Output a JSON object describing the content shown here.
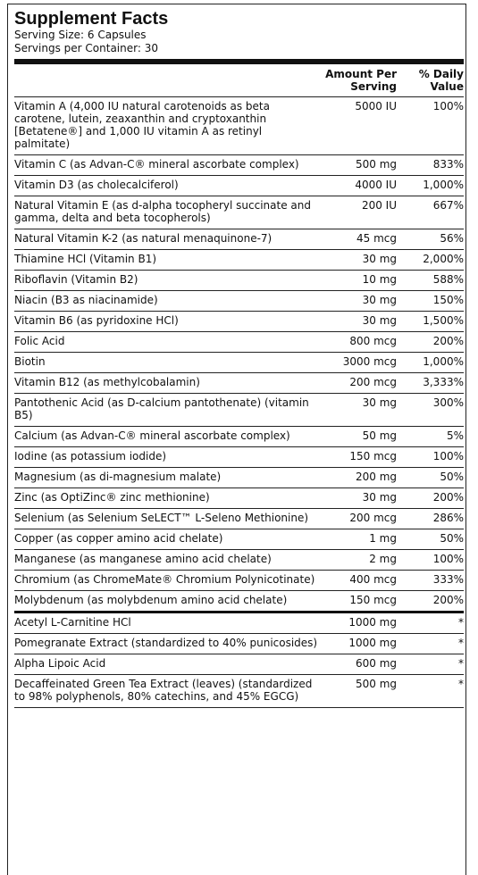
{
  "title": "Supplement Facts",
  "serving_size": "Serving Size: 6 Capsules",
  "servings_per_container": "Servings per Container: 30",
  "headers": {
    "amount_line1": "Amount Per",
    "amount_line2": "Serving",
    "dv_line1": "% Daily",
    "dv_line2": "Value"
  },
  "rows": [
    {
      "name": "Vitamin A (4,000 IU natural carotenoids as beta carotene, lutein, zeaxanthin and cryptoxanthin [Betatene®] and 1,000 IU vitamin A as retinyl palmitate)",
      "amount": "5000 IU",
      "dv": "100%"
    },
    {
      "name": "Vitamin C (as Advan-C® mineral ascorbate complex)",
      "amount": "500 mg",
      "dv": "833%"
    },
    {
      "name": "Vitamin D3 (as cholecalciferol)",
      "amount": "4000 IU",
      "dv": "1,000%"
    },
    {
      "name": "Natural Vitamin E (as d-alpha tocopheryl succinate and gamma, delta and beta tocopherols)",
      "amount": "200 IU",
      "dv": "667%"
    },
    {
      "name": "Natural Vitamin K-2 (as natural menaquinone-7)",
      "amount": "45 mcg",
      "dv": "56%"
    },
    {
      "name": "Thiamine HCl (Vitamin B1)",
      "amount": "30 mg",
      "dv": "2,000%"
    },
    {
      "name": "Riboflavin (Vitamin B2)",
      "amount": "10 mg",
      "dv": "588%"
    },
    {
      "name": "Niacin (B3 as niacinamide)",
      "amount": "30 mg",
      "dv": "150%"
    },
    {
      "name": "Vitamin B6 (as pyridoxine HCl)",
      "amount": "30 mg",
      "dv": "1,500%"
    },
    {
      "name": "Folic Acid",
      "amount": "800 mcg",
      "dv": "200%"
    },
    {
      "name": "Biotin",
      "amount": "3000 mcg",
      "dv": "1,000%"
    },
    {
      "name": "Vitamin B12 (as methylcobalamin)",
      "amount": "200 mcg",
      "dv": "3,333%"
    },
    {
      "name": "Pantothenic Acid (as D-calcium pantothenate) (vitamin B5)",
      "amount": "30 mg",
      "dv": "300%"
    },
    {
      "name": "Calcium (as Advan-C® mineral ascorbate complex)",
      "amount": "50 mg",
      "dv": "5%"
    },
    {
      "name": "Iodine (as potassium iodide)",
      "amount": "150 mcg",
      "dv": "100%"
    },
    {
      "name": "Magnesium (as di-magnesium malate)",
      "amount": "200 mg",
      "dv": "50%"
    },
    {
      "name": "Zinc (as OptiZinc® zinc methionine)",
      "amount": "30 mg",
      "dv": "200%"
    },
    {
      "name": "Selenium (as Selenium SeLECT™ L-Seleno Methionine)",
      "amount": "200 mcg",
      "dv": "286%"
    },
    {
      "name": "Copper (as copper amino acid chelate)",
      "amount": "1 mg",
      "dv": "50%"
    },
    {
      "name": "Manganese (as manganese amino acid chelate)",
      "amount": "2 mg",
      "dv": "100%"
    },
    {
      "name": "Chromium (as ChromeMate® Chromium Polynicotinate)",
      "amount": "400 mcg",
      "dv": "333%"
    },
    {
      "name": "Molybdenum (as molybdenum amino acid chelate)",
      "amount": "150 mcg",
      "dv": "200%"
    },
    {
      "name": "Acetyl L-Carnitine HCl",
      "amount": "1000 mg",
      "dv": "*"
    },
    {
      "name": "Pomegranate Extract (standardized to 40% punicosides)",
      "amount": "1000 mg",
      "dv": "*"
    },
    {
      "name": "Alpha Lipoic Acid",
      "amount": "600 mg",
      "dv": "*"
    },
    {
      "name": "Decaffeinated Green Tea Extract (leaves) (standardized to 98% polyphenols, 80% catechins, and 45% EGCG)",
      "amount": "500 mg",
      "dv": "*"
    }
  ]
}
